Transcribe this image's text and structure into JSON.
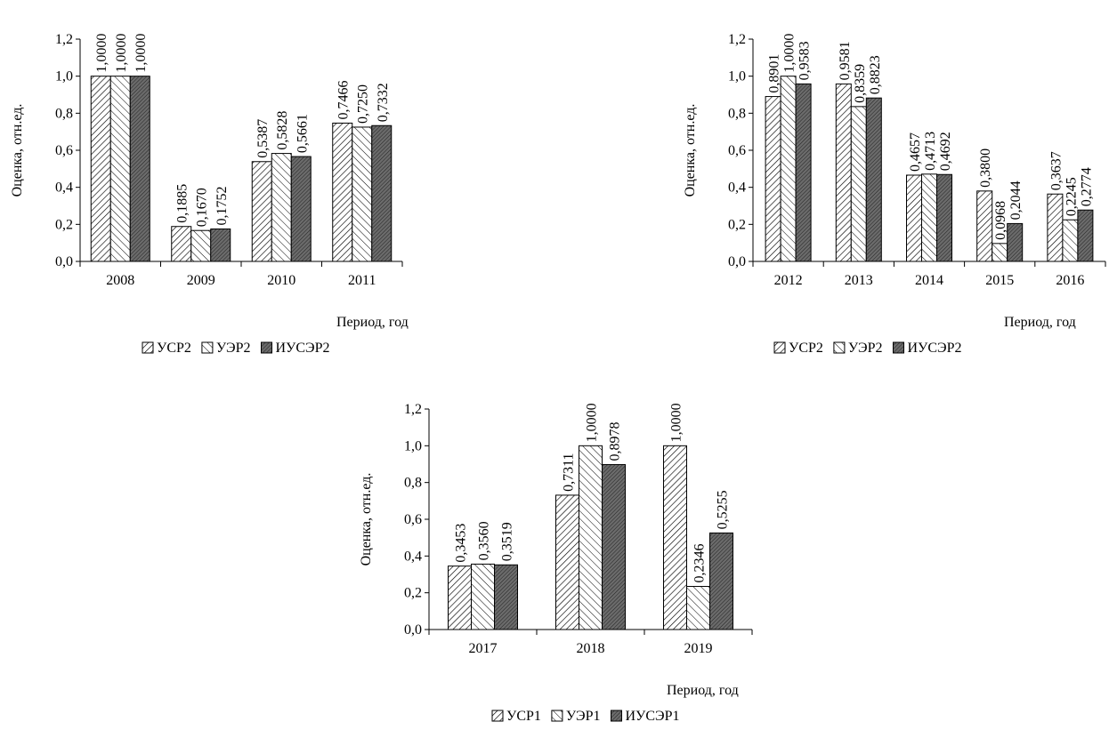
{
  "chart_data": [
    {
      "type": "bar",
      "categories": [
        "2008",
        "2009",
        "2010",
        "2011"
      ],
      "series": [
        {
          "name": "УСР2",
          "values": [
            1.0,
            0.1885,
            0.5387,
            0.7466
          ],
          "labels": [
            "1,0000",
            "0,1885",
            "0,5387",
            "0,7466"
          ]
        },
        {
          "name": "УЭР2",
          "values": [
            1.0,
            0.167,
            0.5828,
            0.725
          ],
          "labels": [
            "1,0000",
            "0,1670",
            "0,5828",
            "0,7250"
          ]
        },
        {
          "name": "ИУСЭР2",
          "values": [
            1.0,
            0.1752,
            0.5661,
            0.7332
          ],
          "labels": [
            "1,0000",
            "0,1752",
            "0,5661",
            "0,7332"
          ]
        }
      ],
      "xlabel": "Период, год",
      "ylabel": "Оценка, отн.ед.",
      "ylim": [
        0,
        1.2
      ],
      "yticks": [
        "0,0",
        "0,2",
        "0,4",
        "0,6",
        "0,8",
        "1,0",
        "1,2"
      ],
      "legend_position": "bottom",
      "grid": false
    },
    {
      "type": "bar",
      "categories": [
        "2012",
        "2013",
        "2014",
        "2015",
        "2016"
      ],
      "series": [
        {
          "name": "УСР2",
          "values": [
            0.8901,
            0.9581,
            0.4657,
            0.38,
            0.3637
          ],
          "labels": [
            "0,8901",
            "0,9581",
            "0,4657",
            "0,3800",
            "0,3637"
          ]
        },
        {
          "name": "УЭР2",
          "values": [
            1.0,
            0.8359,
            0.4713,
            0.0968,
            0.2245
          ],
          "labels": [
            "1,0000",
            "0,8359",
            "0,4713",
            "0,0968",
            "0,2245"
          ]
        },
        {
          "name": "ИУСЭР2",
          "values": [
            0.9583,
            0.8823,
            0.4692,
            0.2044,
            0.2774
          ],
          "labels": [
            "0,9583",
            "0,8823",
            "0,4692",
            "0,2044",
            "0,2774"
          ]
        }
      ],
      "xlabel": "Период, год",
      "ylabel": "Оценка, отн.ед.",
      "ylim": [
        0,
        1.2
      ],
      "yticks": [
        "0,0",
        "0,2",
        "0,4",
        "0,6",
        "0,8",
        "1,0",
        "1,2"
      ],
      "legend_position": "bottom",
      "grid": false
    },
    {
      "type": "bar",
      "categories": [
        "2017",
        "2018",
        "2019"
      ],
      "series": [
        {
          "name": "УСР1",
          "values": [
            0.3453,
            0.7311,
            1.0
          ],
          "labels": [
            "0,3453",
            "0,7311",
            "1,0000"
          ]
        },
        {
          "name": "УЭР1",
          "values": [
            0.356,
            1.0,
            0.2346
          ],
          "labels": [
            "0,3560",
            "1,0000",
            "0,2346"
          ]
        },
        {
          "name": "ИУСЭР1",
          "values": [
            0.3519,
            0.8978,
            0.5255
          ],
          "labels": [
            "0,3519",
            "0,8978",
            "0,5255"
          ]
        }
      ],
      "xlabel": "Период, год",
      "ylabel": "Оценка, отн.ед.",
      "ylim": [
        0,
        1.2
      ],
      "yticks": [
        "0,0",
        "0,2",
        "0,4",
        "0,6",
        "0,8",
        "1,0",
        "1,2"
      ],
      "legend_position": "bottom",
      "grid": false
    }
  ],
  "colors": {
    "stroke": "#000000",
    "series_fill": [
      "#ffffff",
      "#ffffff",
      "#555555"
    ]
  }
}
